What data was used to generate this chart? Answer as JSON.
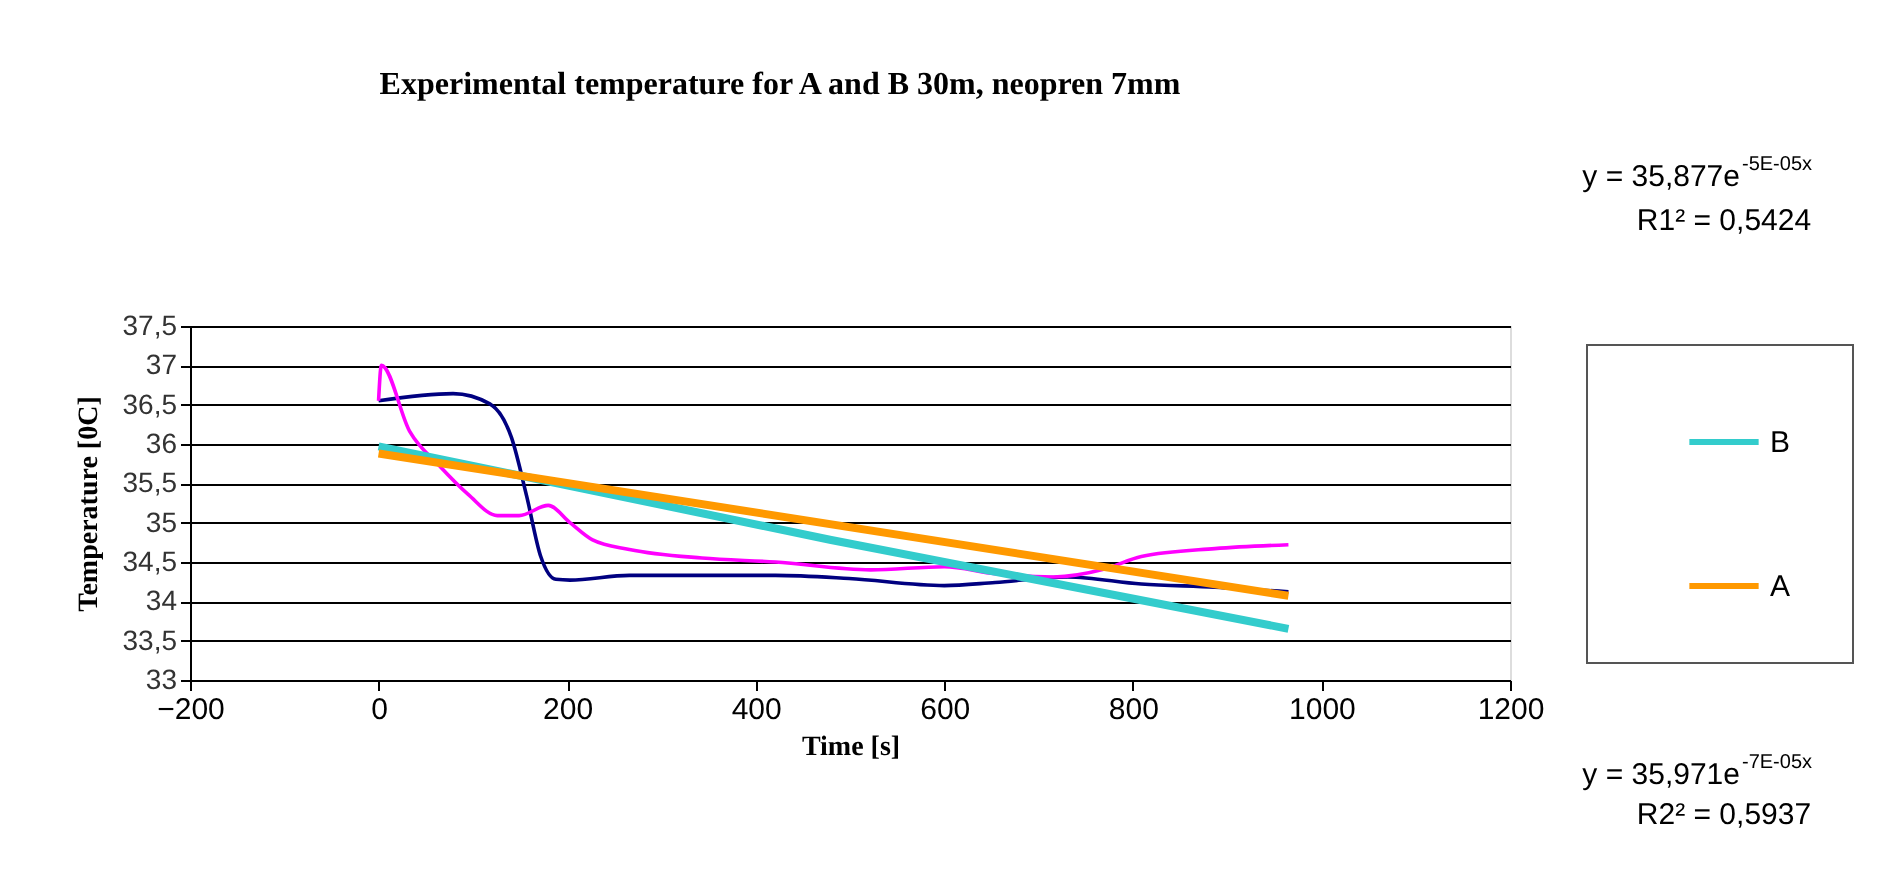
{
  "chart_data": {
    "type": "line",
    "title": "Experimental temperature for A and B 30m, neopren 7mm",
    "xlabel": "Time [s]",
    "ylabel": "Temperature [0C]",
    "xlim": [
      -200,
      1200
    ],
    "xticks": [
      -200,
      0,
      200,
      400,
      600,
      800,
      1000,
      1200
    ],
    "ylim": [
      33,
      37.5
    ],
    "yticks": [
      {
        "value": 33,
        "label": "33"
      },
      {
        "value": 33.5,
        "label": "33,5"
      },
      {
        "value": 34,
        "label": "34"
      },
      {
        "value": 34.5,
        "label": "34,5"
      },
      {
        "value": 35,
        "label": "35"
      },
      {
        "value": 35.5,
        "label": "35,5"
      },
      {
        "value": 36,
        "label": "36"
      },
      {
        "value": 36.5,
        "label": "36,5"
      },
      {
        "value": 37,
        "label": "37"
      },
      {
        "value": 37.5,
        "label": "37,5"
      }
    ],
    "grid": "y",
    "legend": "right",
    "marker": "none",
    "annotations": [
      "y = 35,877e$^{-5E-05x}$",
      "R1² = 0,5424",
      "y = 35,971e$^{-7E-05x}$",
      "R2² = 0,5937"
    ],
    "series": [
      {
        "color": "#000080",
        "x": [
          0,
          79,
          118,
          141,
          157,
          172,
          188,
          203,
          266,
          421,
          499,
          600,
          654,
          731,
          809,
          887,
          965
        ],
        "values": [
          36.55,
          36.64,
          36.51,
          36.08,
          35.34,
          34.57,
          34.28,
          34.27,
          34.33,
          34.33,
          34.29,
          34.2,
          34.24,
          34.31,
          34.22,
          34.18,
          34.12
        ]
      },
      {
        "color": "#ff00ff",
        "x": [
          0,
          3,
          33,
          64,
          95,
          126,
          149,
          180,
          203,
          227,
          266,
          343,
          421,
          522,
          600,
          654,
          716,
          770,
          809,
          887,
          965
        ],
        "values": [
          36.55,
          37.0,
          36.16,
          35.73,
          35.36,
          35.09,
          35.09,
          35.22,
          35.0,
          34.78,
          34.66,
          34.55,
          34.5,
          34.4,
          34.44,
          34.35,
          34.31,
          34.41,
          34.57,
          34.67,
          34.72
        ]
      },
      {
        "name": "B",
        "color": "#33cccc",
        "x": [
          0,
          480,
          965
        ],
        "values": [
          35.97,
          34.78,
          33.65
        ]
      },
      {
        "name": "A",
        "color": "#ff9900",
        "x": [
          0,
          965
        ],
        "values": [
          35.88,
          34.07
        ]
      }
    ]
  }
}
